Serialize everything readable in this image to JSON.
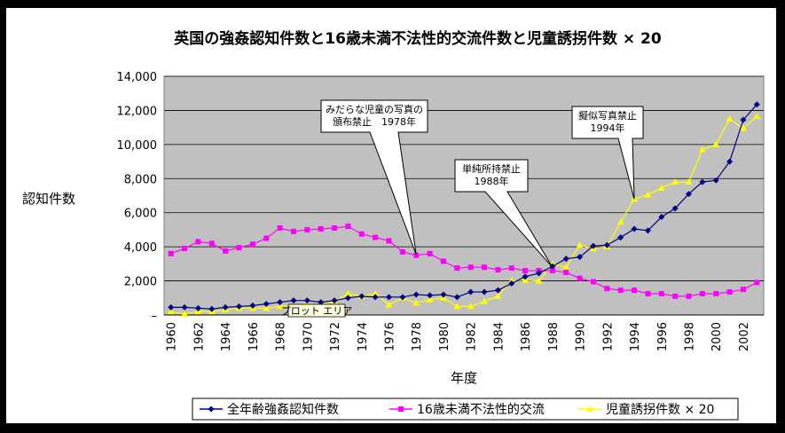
{
  "chart_data": {
    "type": "line",
    "title": "英国の強姦認知件数と16歳未満不法性的交流件数と児童誘拐件数 × 20",
    "xlabel": "年度",
    "ylabel": "認知件数",
    "ylim": [
      0,
      14000
    ],
    "yticks": [
      "–",
      "2,000",
      "4,000",
      "6,000",
      "8,000",
      "10,000",
      "12,000",
      "14,000"
    ],
    "grid": "horizontal",
    "legend_position": "bottom",
    "x": [
      1960,
      1961,
      1962,
      1963,
      1964,
      1965,
      1966,
      1967,
      1968,
      1969,
      1970,
      1971,
      1972,
      1973,
      1974,
      1975,
      1976,
      1977,
      1978,
      1979,
      1980,
      1981,
      1982,
      1983,
      1984,
      1985,
      1986,
      1987,
      1988,
      1989,
      1990,
      1991,
      1992,
      1993,
      1994,
      1995,
      1996,
      1997,
      1998,
      1999,
      2000,
      2001,
      2002,
      2003
    ],
    "xticks": [
      1960,
      1962,
      1964,
      1966,
      1968,
      1970,
      1972,
      1974,
      1976,
      1978,
      1980,
      1982,
      1984,
      1986,
      1988,
      1990,
      1992,
      1994,
      1996,
      1998,
      2000,
      2002
    ],
    "series": [
      {
        "name": "全年齢強姦認知件数",
        "color": "#000080",
        "marker": "diamond",
        "values": [
          450,
          450,
          400,
          350,
          450,
          500,
          550,
          650,
          750,
          850,
          850,
          750,
          850,
          1000,
          1100,
          1050,
          1050,
          1050,
          1200,
          1150,
          1200,
          1050,
          1350,
          1350,
          1450,
          1850,
          2250,
          2450,
          2850,
          3300,
          3400,
          4050,
          4100,
          4550,
          5050,
          4950,
          5750,
          6250,
          7100,
          7800,
          7900,
          9000,
          11450,
          12350
        ]
      },
      {
        "name": "16歳未満不法性的交流",
        "color": "#ff00ff",
        "marker": "square",
        "values": [
          3600,
          3900,
          4300,
          4200,
          3750,
          3950,
          4150,
          4500,
          5100,
          4900,
          5000,
          5050,
          5100,
          5200,
          4750,
          4550,
          4350,
          3700,
          3500,
          3600,
          3150,
          2750,
          2800,
          2800,
          2650,
          2750,
          2600,
          2600,
          2600,
          2500,
          2150,
          1950,
          1550,
          1450,
          1450,
          1250,
          1250,
          1100,
          1100,
          1250,
          1250,
          1350,
          1500,
          1900
        ]
      },
      {
        "name": "児童誘拐件数 × 20",
        "color": "#ffff00",
        "marker": "triangle",
        "values": [
          200,
          50,
          200,
          200,
          300,
          400,
          400,
          400,
          500,
          600,
          650,
          600,
          800,
          1250,
          1100,
          1250,
          600,
          1000,
          700,
          900,
          1000,
          500,
          500,
          800,
          1100,
          2000,
          2050,
          2000,
          3000,
          2800,
          4100,
          3900,
          4000,
          5450,
          6800,
          7050,
          7450,
          7800,
          7800,
          9700,
          10000,
          11500,
          10950,
          11650
        ]
      }
    ],
    "annotations": [
      {
        "lines": [
          "みだらな児童の写真の",
          "頒布禁止　1978年"
        ],
        "x": 1978,
        "y": 3550
      },
      {
        "lines": [
          "単純所持禁止",
          "1988年"
        ],
        "x": 1988,
        "y": 2800
      },
      {
        "lines": [
          "擬似写真禁止",
          "1994年"
        ],
        "x": 1994,
        "y": 6800
      }
    ],
    "plot_area_label": "プロット エリア"
  }
}
